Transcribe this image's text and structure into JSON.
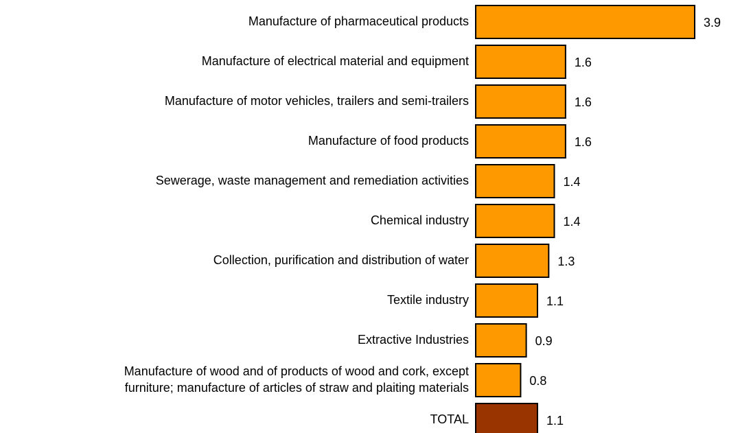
{
  "chart_data": {
    "type": "bar",
    "orientation": "horizontal",
    "categories": [
      "Manufacture of pharmaceutical products",
      "Manufacture of electrical material and equipment",
      "Manufacture of motor vehicles, trailers and semi-trailers",
      "Manufacture of food products",
      "Sewerage, waste management and remediation activities",
      "Chemical industry",
      "Collection, purification and distribution of water",
      "Textile industry",
      "Extractive Industries",
      [
        "Manufacture of wood and of products of wood and cork, except",
        "furniture; manufacture of articles of straw and plaiting materials"
      ],
      "TOTAL"
    ],
    "values": [
      3.9,
      1.6,
      1.6,
      1.6,
      1.4,
      1.4,
      1.3,
      1.1,
      0.9,
      0.8,
      1.1
    ],
    "colors": [
      "#ff9900",
      "#ff9900",
      "#ff9900",
      "#ff9900",
      "#ff9900",
      "#ff9900",
      "#ff9900",
      "#ff9900",
      "#ff9900",
      "#ff9900",
      "#993300"
    ]
  }
}
